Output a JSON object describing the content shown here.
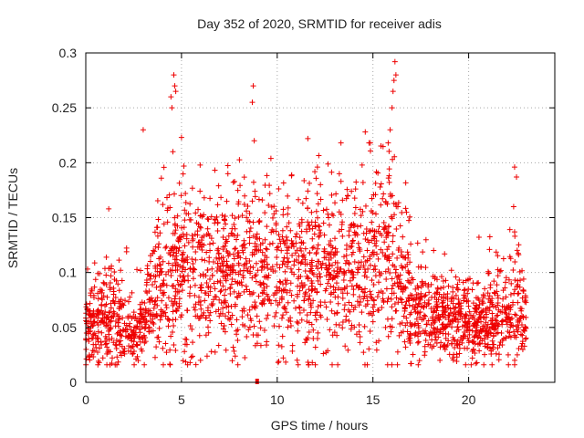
{
  "chart_data": {
    "type": "scatter",
    "title": "Day 352 of 2020, SRMTID for receiver adis",
    "xlabel": "GPS time / hours",
    "ylabel": "SRMTID / TECUs",
    "xlim": [
      0,
      24.5
    ],
    "ylim": [
      0,
      0.3
    ],
    "x_ticks": [
      0,
      5,
      10,
      15,
      20
    ],
    "y_ticks": [
      0,
      0.05,
      0.1,
      0.15,
      0.2,
      0.25,
      0.3
    ],
    "x_tick_labels": [
      "0",
      "5",
      "10",
      "15",
      "20"
    ],
    "y_tick_labels": [
      "0",
      "0.05",
      "0.1",
      "0.15",
      "0.2",
      "0.25",
      "0.3"
    ],
    "grid": true,
    "legend": "none",
    "marker": "plus",
    "color": "#ee0000",
    "series_name": "SRMTID",
    "baseline_profile": {
      "hours": [
        0,
        0.5,
        1,
        1.5,
        2,
        2.5,
        3,
        3.5,
        4,
        4.5,
        5,
        6,
        7,
        8,
        9,
        10,
        11,
        12,
        13,
        14,
        15,
        15.5,
        16,
        16.5,
        17,
        18,
        19,
        20,
        21,
        22,
        22.5,
        23
      ],
      "median_srmtid": [
        0.05,
        0.055,
        0.06,
        0.065,
        0.05,
        0.045,
        0.05,
        0.085,
        0.095,
        0.1,
        0.105,
        0.1,
        0.105,
        0.11,
        0.1,
        0.095,
        0.1,
        0.105,
        0.1,
        0.105,
        0.115,
        0.125,
        0.12,
        0.09,
        0.075,
        0.06,
        0.055,
        0.055,
        0.055,
        0.06,
        0.075,
        0.065
      ],
      "spread": [
        0.018,
        0.02,
        0.022,
        0.025,
        0.018,
        0.014,
        0.018,
        0.03,
        0.035,
        0.04,
        0.04,
        0.038,
        0.04,
        0.04,
        0.038,
        0.036,
        0.038,
        0.04,
        0.038,
        0.04,
        0.042,
        0.045,
        0.045,
        0.032,
        0.025,
        0.02,
        0.018,
        0.018,
        0.018,
        0.02,
        0.028,
        0.02
      ],
      "point_count": 2600
    },
    "highlighted_points": [
      {
        "x": 3.0,
        "y": 0.23
      },
      {
        "x": 4.45,
        "y": 0.26
      },
      {
        "x": 4.5,
        "y": 0.25
      },
      {
        "x": 4.6,
        "y": 0.28
      },
      {
        "x": 4.65,
        "y": 0.27
      },
      {
        "x": 4.7,
        "y": 0.265
      },
      {
        "x": 4.55,
        "y": 0.21
      },
      {
        "x": 5.0,
        "y": 0.223
      },
      {
        "x": 8.7,
        "y": 0.255
      },
      {
        "x": 8.75,
        "y": 0.27
      },
      {
        "x": 8.8,
        "y": 0.22
      },
      {
        "x": 16.0,
        "y": 0.25
      },
      {
        "x": 16.05,
        "y": 0.265
      },
      {
        "x": 16.1,
        "y": 0.275
      },
      {
        "x": 16.15,
        "y": 0.292
      },
      {
        "x": 16.2,
        "y": 0.28
      },
      {
        "x": 15.9,
        "y": 0.23
      },
      {
        "x": 22.4,
        "y": 0.196
      },
      {
        "x": 22.5,
        "y": 0.187
      },
      {
        "x": 22.35,
        "y": 0.16
      },
      {
        "x": 22.4,
        "y": 0.137
      },
      {
        "x": 7.7,
        "y": 0.032
      },
      {
        "x": 18.5,
        "y": 0.02
      },
      {
        "x": 1.2,
        "y": 0.158
      },
      {
        "x": 11.6,
        "y": 0.222
      },
      {
        "x": 12.1,
        "y": 0.196
      },
      {
        "x": 14.6,
        "y": 0.228
      },
      {
        "x": 12.0,
        "y": 0.032
      },
      {
        "x": 0.7,
        "y": 0.018
      }
    ],
    "zero_marker": {
      "x": 8.95,
      "y": 0.0
    }
  }
}
